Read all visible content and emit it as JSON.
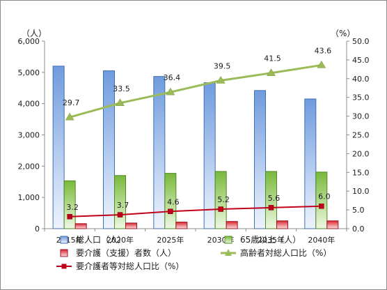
{
  "chart_data": {
    "type": "bar",
    "categories": [
      "2015年",
      "2020年",
      "2025年",
      "2030年",
      "2035年",
      "2040年"
    ],
    "left_axis": {
      "unit_label": "（人）",
      "ylim": [
        0,
        6000
      ],
      "ticks": [
        "0",
        "1,000",
        "2,000",
        "3,000",
        "4,000",
        "5,000",
        "6,000"
      ]
    },
    "right_axis": {
      "unit_label": "（%）",
      "ylim": [
        0,
        50
      ],
      "ticks": [
        "0.0",
        "5.0",
        "10.0",
        "15.0",
        "20.0",
        "25.0",
        "30.0",
        "35.0",
        "40.0",
        "45.0",
        "50.0"
      ]
    },
    "series": [
      {
        "name": "総人口（人）",
        "kind": "bar",
        "axis": "left",
        "color": "#5b8fd6",
        "values": [
          5200,
          5050,
          4870,
          4670,
          4420,
          4150
        ]
      },
      {
        "name": "65歳以上（人）",
        "kind": "bar",
        "axis": "left",
        "color": "#7dbb42",
        "values": [
          1530,
          1700,
          1770,
          1830,
          1830,
          1810
        ]
      },
      {
        "name": "要介護（支援）者数（人）",
        "kind": "bar",
        "axis": "left",
        "color": "#d9232e",
        "values": [
          160,
          180,
          210,
          230,
          250,
          250
        ]
      },
      {
        "name": "高齢者対総人口比（%）",
        "kind": "line",
        "axis": "right",
        "color": "#9bbb59",
        "marker": "triangle",
        "values": [
          29.7,
          33.5,
          36.4,
          39.5,
          41.5,
          43.6
        ],
        "labels": [
          "29.7",
          "33.5",
          "36.4",
          "39.5",
          "41.5",
          "43.6"
        ]
      },
      {
        "name": "要介護者等対総人口比（%）",
        "kind": "line",
        "axis": "right",
        "color": "#c0001a",
        "marker": "square",
        "values": [
          3.2,
          3.7,
          4.6,
          5.2,
          5.6,
          6.0
        ],
        "labels": [
          "3.2",
          "3.7",
          "4.6",
          "5.2",
          "5.6",
          "6.0"
        ]
      }
    ],
    "legend_order": [
      0,
      1,
      2,
      3,
      4
    ],
    "legend_placement": "bottom",
    "grid": false
  }
}
